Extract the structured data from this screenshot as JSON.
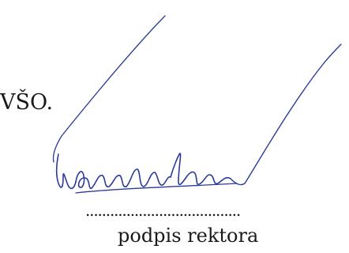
{
  "document": {
    "text_fragment": "VŠO.",
    "signature_line": "......................................",
    "signature_caption": "podpis rektora",
    "signature_ink_color": "#2b3a9b"
  }
}
